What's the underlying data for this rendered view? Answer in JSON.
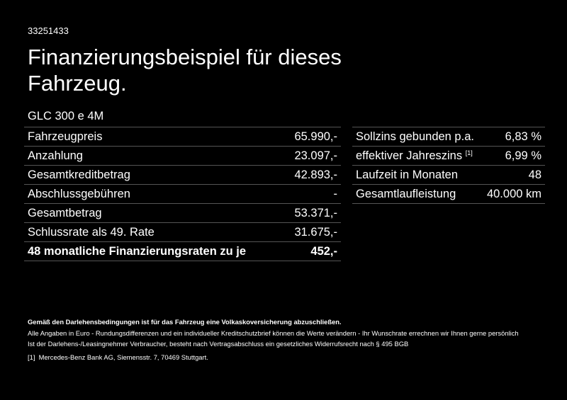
{
  "offer_id": "33251433",
  "title": "Finanzierungsbeispiel für dieses Fahrzeug.",
  "model": "GLC 300 e 4M",
  "left_rows": [
    {
      "label": "Fahrzeugpreis",
      "value": "65.990,-"
    },
    {
      "label": "Anzahlung",
      "value": "23.097,-"
    },
    {
      "label": "Gesamtkreditbetrag",
      "value": "42.893,-"
    },
    {
      "label": "Abschlussgebühren",
      "value": "-"
    },
    {
      "label": "Gesamtbetrag",
      "value": "53.371,-"
    },
    {
      "label": "Schlussrate als 49. Rate",
      "value": "31.675,-"
    },
    {
      "label": "48 monatliche Finanzierungsraten zu je",
      "value": "452,-"
    }
  ],
  "right_rows": [
    {
      "label": "Sollzins gebunden p.a.",
      "value": "6,83 %"
    },
    {
      "label": "effektiver Jahreszins",
      "sup": "[1]",
      "value": "6,99 %"
    },
    {
      "label": "Laufzeit in Monaten",
      "value": "48"
    },
    {
      "label": "Gesamtlaufleistung",
      "value": "40.000 km"
    }
  ],
  "notes": {
    "bold": "Gemäß den Darlehensbedingungen ist für das Fahrzeug eine Volkaskoversicherung abzuschließen.",
    "line1": "Alle Angaben in Euro - Rundungsdifferenzen und ein individueller Kreditschutzbrief können die Werte verändern - Ihr Wunschrate errechnen wir Ihnen gerne persönlich",
    "line2": "Ist der Darlehens-/Leasingnehmer Verbraucher, besteht nach Vertragsabschluss ein gesetzliches Widerrufsrecht nach § 495 BGB",
    "footnote_mark": "[1]",
    "footnote": "Mercedes-Benz Bank AG, Siemensstr. 7, 70469 Stuttgart."
  }
}
